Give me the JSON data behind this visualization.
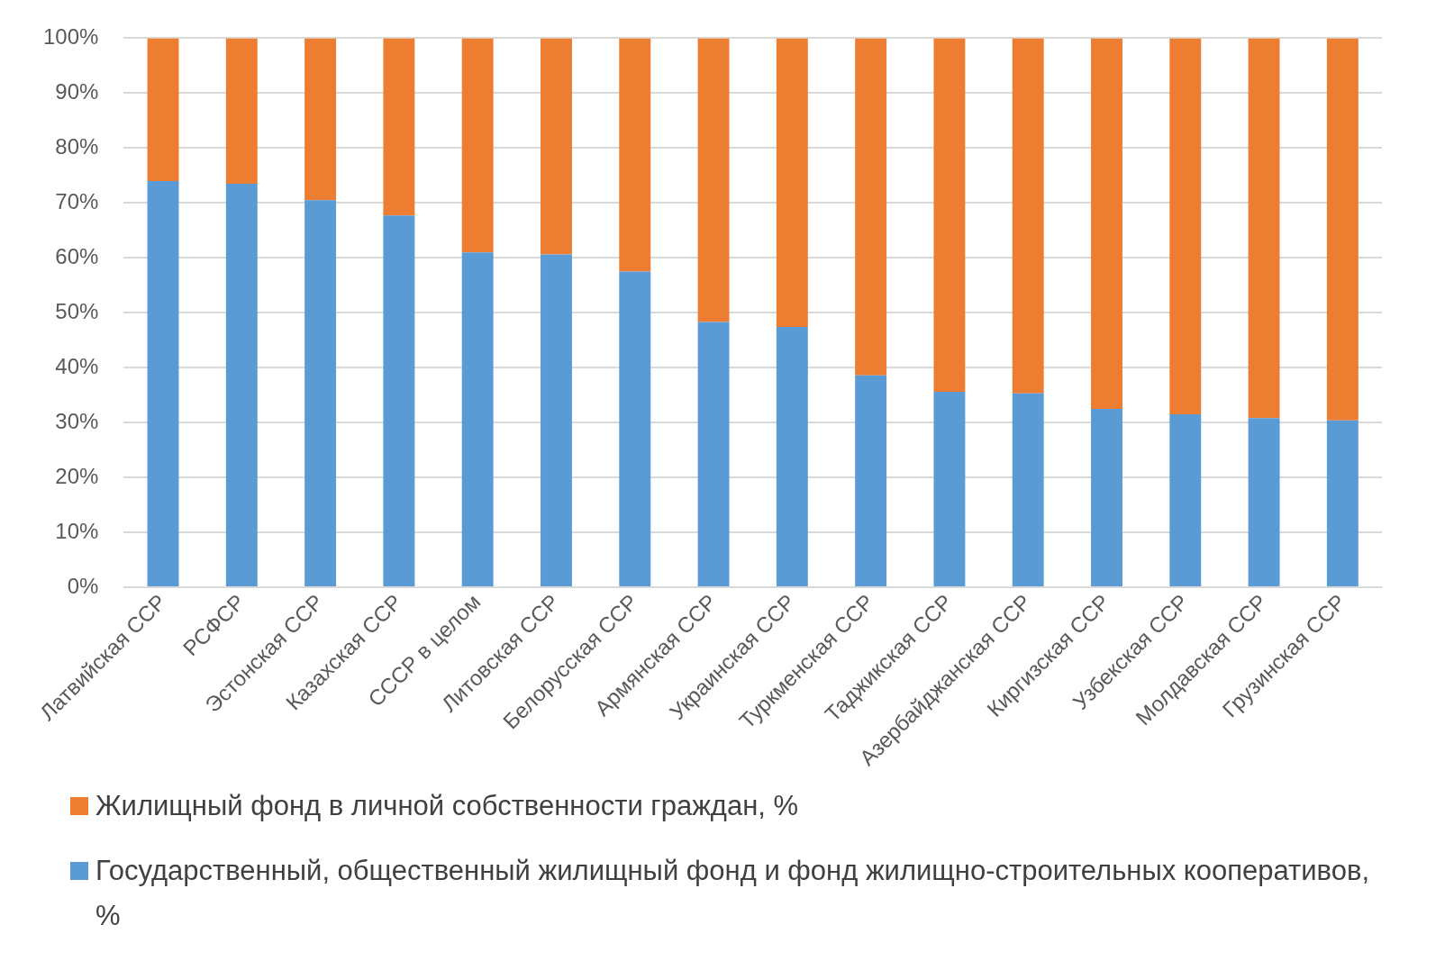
{
  "chart_data": {
    "type": "bar",
    "stacked": true,
    "categories": [
      "Латвийская ССР",
      "РСФСР",
      "Эстонская ССР",
      "Казахская ССР",
      "СССР в целом",
      "Литовская ССР",
      "Белорусская ССР",
      "Армянская ССР",
      "Украинская ССР",
      "Туркменская ССР",
      "Таджикская ССР",
      "Азербайджанская ССР",
      "Киргизская ССР",
      "Узбекская ССР",
      "Молдавская ССР",
      "Грузинская ССР"
    ],
    "series": [
      {
        "name": "Государственный, общественный жилищный фонд и фонд жилищно-строительных кооперативов, %",
        "color": "#5b9bd5",
        "values": [
          74,
          73.5,
          70.5,
          67.7,
          61,
          60.6,
          57.5,
          48.3,
          47.4,
          38.6,
          35.6,
          35.3,
          32.5,
          31.5,
          30.8,
          30.4
        ]
      },
      {
        "name": "Жилищный фонд в личной собственности граждан, %",
        "color": "#ed7d31",
        "values": [
          26,
          26.5,
          29.5,
          32.3,
          39,
          39.4,
          42.5,
          51.7,
          52.6,
          61.4,
          64.4,
          64.7,
          67.5,
          68.5,
          69.2,
          69.6
        ]
      }
    ],
    "ylim": [
      0,
      100
    ],
    "yticks": [
      {
        "value": 0,
        "label": "0%"
      },
      {
        "value": 10,
        "label": "10%"
      },
      {
        "value": 20,
        "label": "20%"
      },
      {
        "value": 30,
        "label": "30%"
      },
      {
        "value": 40,
        "label": "40%"
      },
      {
        "value": 50,
        "label": "50%"
      },
      {
        "value": 60,
        "label": "60%"
      },
      {
        "value": 70,
        "label": "70%"
      },
      {
        "value": 80,
        "label": "80%"
      },
      {
        "value": 90,
        "label": "90%"
      },
      {
        "value": 100,
        "label": "100%"
      }
    ],
    "grid": "y",
    "legend": "bottom"
  }
}
